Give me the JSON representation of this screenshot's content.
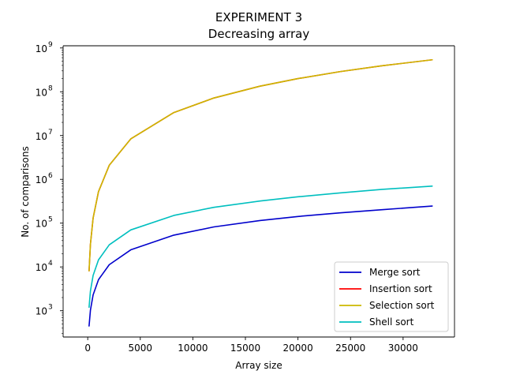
{
  "chart_data": {
    "type": "line",
    "title": "EXPERIMENT 3",
    "subtitle": "Decreasing array",
    "xlabel": "Array size",
    "ylabel": "No. of comparisons",
    "xlim": [
      -2340,
      34890
    ],
    "ylim_log10": [
      2.4,
      9.05
    ],
    "yscale": "log",
    "grid": false,
    "legend_position": "lower-right",
    "x_ticks": [
      {
        "value": 0,
        "label": "0"
      },
      {
        "value": 5000,
        "label": "5000"
      },
      {
        "value": 10000,
        "label": "10000"
      },
      {
        "value": 15000,
        "label": "15000"
      },
      {
        "value": 20000,
        "label": "20000"
      },
      {
        "value": 25000,
        "label": "25000"
      },
      {
        "value": 30000,
        "label": "30000"
      }
    ],
    "y_ticks": [
      {
        "value": 1000,
        "base": "10",
        "exp": "3"
      },
      {
        "value": 10000,
        "base": "10",
        "exp": "4"
      },
      {
        "value": 100000,
        "base": "10",
        "exp": "5"
      },
      {
        "value": 1000000,
        "base": "10",
        "exp": "6"
      },
      {
        "value": 10000000,
        "base": "10",
        "exp": "7"
      },
      {
        "value": 100000000,
        "base": "10",
        "exp": "8"
      },
      {
        "value": 1000000000,
        "base": "10",
        "exp": "9"
      }
    ],
    "x": [
      128,
      256,
      512,
      1024,
      2048,
      4096,
      8192,
      12000,
      16384,
      20000,
      24000,
      28000,
      32768
    ],
    "series": [
      {
        "name": "Merge sort",
        "color": "#0000cc",
        "values": [
          448,
          1024,
          2304,
          5120,
          11264,
          24576,
          53248,
          82000,
          114688,
          142000,
          172000,
          203000,
          245760
        ]
      },
      {
        "name": "Insertion sort",
        "color": "#ff0000",
        "values": [
          8128,
          32640,
          130816,
          523776,
          2096128,
          8386560,
          33550336,
          71994000,
          134209536,
          199990000,
          287988000,
          391986000,
          536854528
        ]
      },
      {
        "name": "Selection sort",
        "color": "#ccb800",
        "values": [
          8128,
          32640,
          130816,
          523776,
          2096128,
          8386560,
          33550336,
          71994000,
          134209536,
          199990000,
          287988000,
          391986000,
          536854528
        ]
      },
      {
        "name": "Shell sort",
        "color": "#00bfbf",
        "values": [
          1200,
          2800,
          6400,
          14500,
          32000,
          70000,
          150000,
          230000,
          320000,
          400000,
          490000,
          590000,
          700000
        ]
      }
    ]
  }
}
